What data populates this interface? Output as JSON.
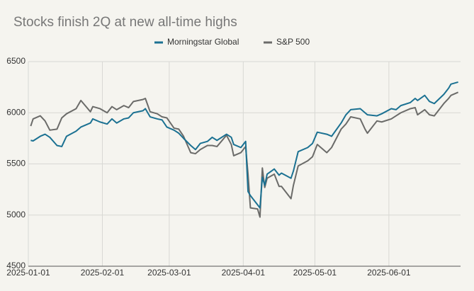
{
  "chart_data": {
    "type": "line",
    "title": "Stocks finish 2Q at new all-time highs",
    "x": [
      "2025-01-02",
      "2025-01-03",
      "2025-01-06",
      "2025-01-08",
      "2025-01-10",
      "2025-01-13",
      "2025-01-15",
      "2025-01-17",
      "2025-01-21",
      "2025-01-23",
      "2025-01-27",
      "2025-01-28",
      "2025-01-31",
      "2025-02-03",
      "2025-02-05",
      "2025-02-07",
      "2025-02-10",
      "2025-02-12",
      "2025-02-14",
      "2025-02-18",
      "2025-02-19",
      "2025-02-21",
      "2025-02-24",
      "2025-02-26",
      "2025-02-28",
      "2025-03-03",
      "2025-03-05",
      "2025-03-07",
      "2025-03-10",
      "2025-03-12",
      "2025-03-14",
      "2025-03-17",
      "2025-03-19",
      "2025-03-21",
      "2025-03-25",
      "2025-03-27",
      "2025-03-28",
      "2025-03-31",
      "2025-04-02",
      "2025-04-03",
      "2025-04-04",
      "2025-04-07",
      "2025-04-08",
      "2025-04-09",
      "2025-04-10",
      "2025-04-11",
      "2025-04-14",
      "2025-04-16",
      "2025-04-17",
      "2025-04-21",
      "2025-04-22",
      "2025-04-24",
      "2025-04-28",
      "2025-04-30",
      "2025-05-02",
      "2025-05-06",
      "2025-05-08",
      "2025-05-12",
      "2025-05-14",
      "2025-05-16",
      "2025-05-20",
      "2025-05-22",
      "2025-05-23",
      "2025-05-27",
      "2025-05-29",
      "2025-06-02",
      "2025-06-04",
      "2025-06-06",
      "2025-06-10",
      "2025-06-12",
      "2025-06-13",
      "2025-06-16",
      "2025-06-18",
      "2025-06-20",
      "2025-06-24",
      "2025-06-26",
      "2025-06-27",
      "2025-06-30"
    ],
    "series": [
      {
        "name": "Morningstar Global",
        "color": "#1b7192",
        "values": [
          5730,
          5725,
          5770,
          5790,
          5760,
          5680,
          5670,
          5770,
          5820,
          5860,
          5900,
          5940,
          5910,
          5890,
          5940,
          5900,
          5940,
          5950,
          6000,
          6020,
          6040,
          5960,
          5940,
          5930,
          5860,
          5830,
          5800,
          5750,
          5680,
          5640,
          5700,
          5720,
          5760,
          5730,
          5790,
          5760,
          5690,
          5660,
          5720,
          5230,
          5190,
          5100,
          5070,
          5370,
          5290,
          5400,
          5450,
          5390,
          5410,
          5360,
          5430,
          5620,
          5660,
          5700,
          5810,
          5790,
          5770,
          5900,
          5980,
          6030,
          6040,
          6000,
          5980,
          5970,
          5990,
          6040,
          6030,
          6070,
          6100,
          6140,
          6120,
          6170,
          6110,
          6090,
          6180,
          6240,
          6280,
          6300
        ]
      },
      {
        "name": "S&P 500",
        "color": "#6b6b69",
        "values": [
          5870,
          5940,
          5970,
          5920,
          5830,
          5840,
          5950,
          5990,
          6040,
          6120,
          6010,
          6060,
          6040,
          6000,
          6060,
          6030,
          6070,
          6050,
          6110,
          6130,
          6140,
          6010,
          5990,
          5960,
          5950,
          5850,
          5840,
          5770,
          5610,
          5600,
          5640,
          5680,
          5680,
          5670,
          5780,
          5690,
          5580,
          5610,
          5670,
          5400,
          5070,
          5060,
          4980,
          5460,
          5270,
          5360,
          5400,
          5280,
          5280,
          5160,
          5290,
          5480,
          5530,
          5570,
          5690,
          5610,
          5660,
          5840,
          5890,
          5960,
          5940,
          5840,
          5800,
          5920,
          5910,
          5940,
          5970,
          6000,
          6040,
          6050,
          5980,
          6030,
          5980,
          5970,
          6090,
          6140,
          6170,
          6200
        ]
      }
    ],
    "xlim": [
      "2025-01-01",
      "2025-07-01"
    ],
    "xticks": [
      "2025-01-01",
      "2025-02-01",
      "2025-03-01",
      "2025-04-01",
      "2025-05-01",
      "2025-06-01"
    ],
    "ylim": [
      4500,
      6500
    ],
    "yticks": [
      4500,
      5000,
      5500,
      6000,
      6500
    ],
    "grid": true
  }
}
